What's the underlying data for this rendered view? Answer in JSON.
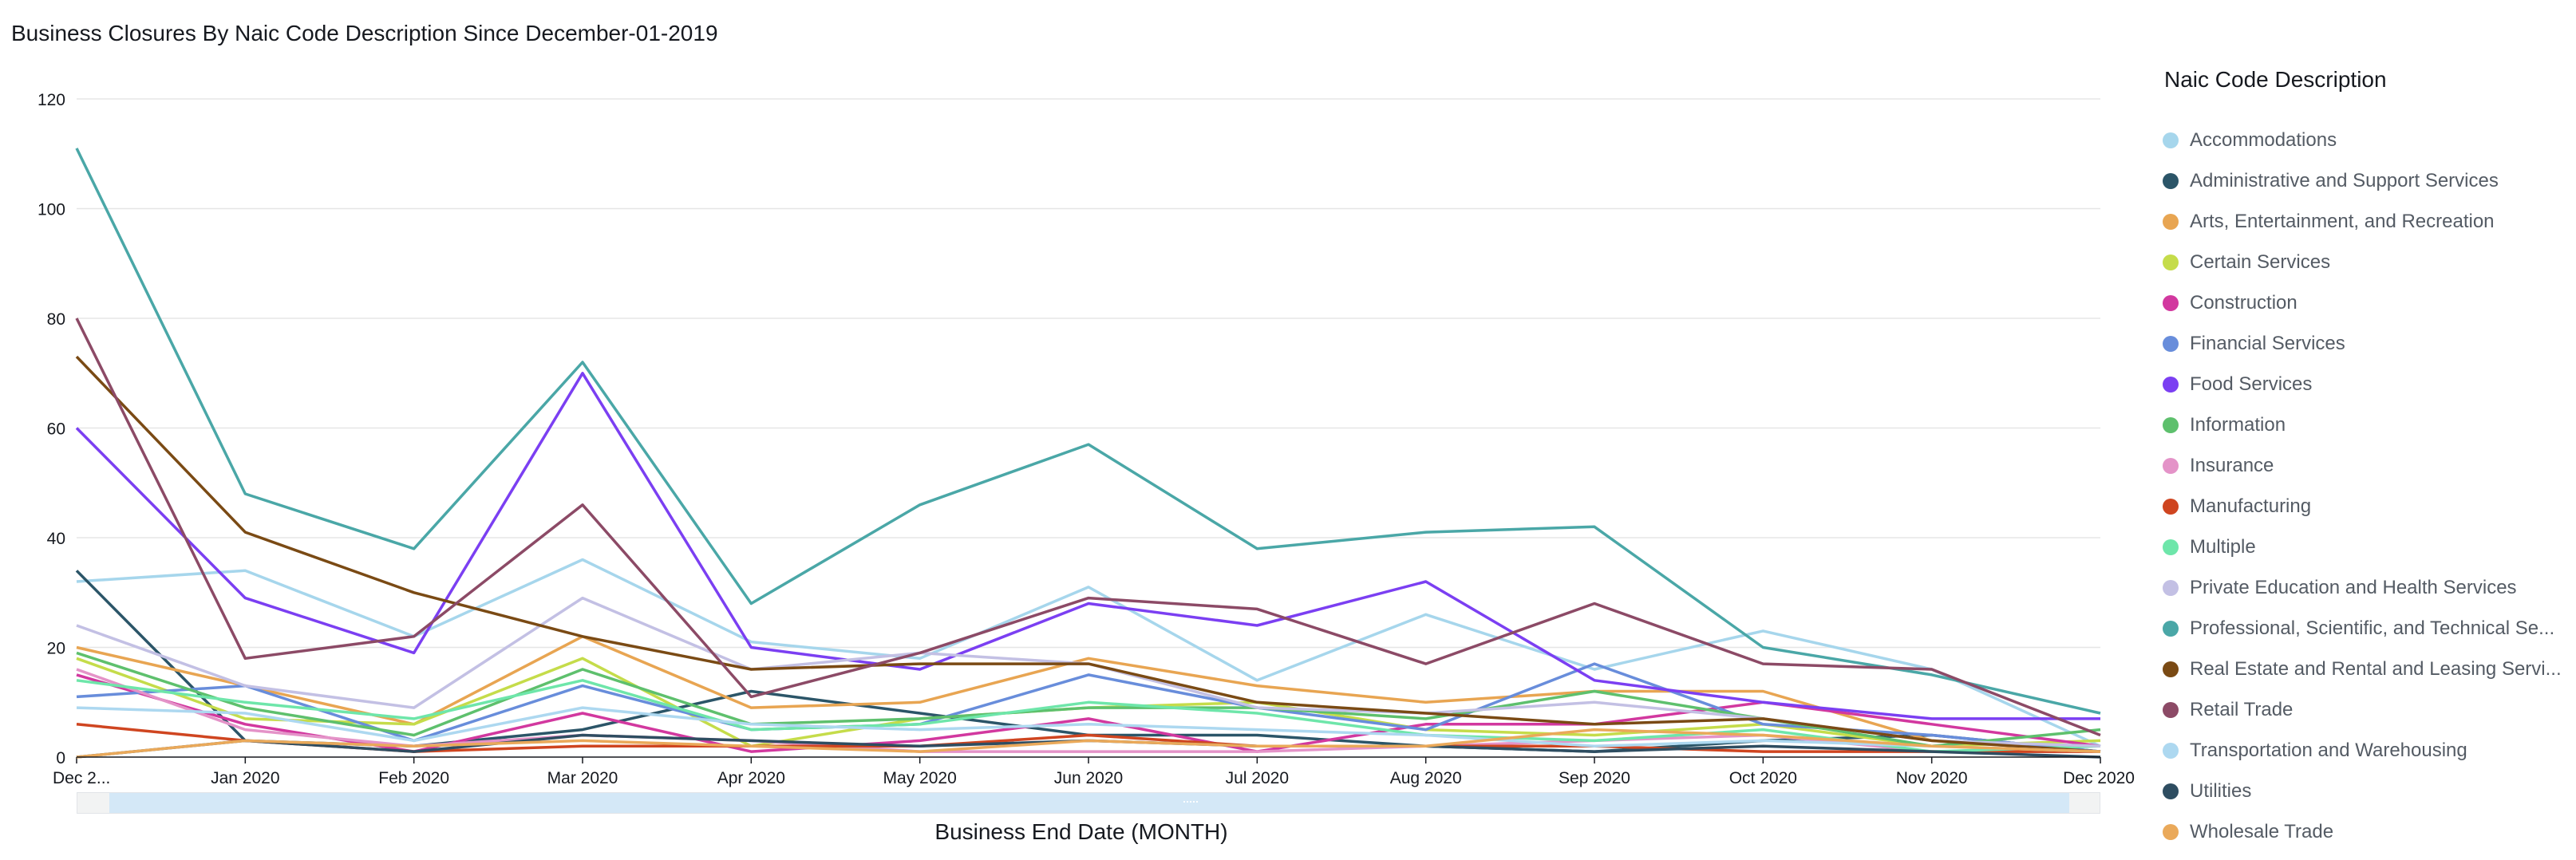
{
  "chart_data": {
    "type": "line",
    "title": "Business Closures By Naic Code Description Since December-01-2019",
    "xlabel": "Business End Date (MONTH)",
    "ylabel": "",
    "ylim": [
      0,
      120
    ],
    "yticks": [
      "0",
      "20",
      "40",
      "60",
      "80",
      "100",
      "120"
    ],
    "grid": true,
    "legend_position": "right",
    "legend_title": "Naic Code Description",
    "categories": [
      "Dec 2...",
      "Jan 2020",
      "Feb 2020",
      "Mar 2020",
      "Apr 2020",
      "May 2020",
      "Jun 2020",
      "Jul 2020",
      "Aug 2020",
      "Sep 2020",
      "Oct 2020",
      "Nov 2020",
      "Dec 2020"
    ],
    "series": [
      {
        "name": "Accommodations",
        "color": "#a6d6ec",
        "values": [
          32,
          34,
          22,
          36,
          21,
          18,
          31,
          14,
          26,
          16,
          23,
          16,
          2
        ]
      },
      {
        "name": "Administrative and Support Services",
        "color": "#2b5568",
        "values": [
          34,
          3,
          2,
          5,
          12,
          8,
          4,
          4,
          2,
          1,
          3,
          4,
          1
        ]
      },
      {
        "name": "Arts, Entertainment, and Recreation",
        "color": "#e8a552",
        "values": [
          20,
          13,
          6,
          22,
          9,
          10,
          18,
          13,
          10,
          12,
          12,
          3,
          1
        ]
      },
      {
        "name": "Certain Services",
        "color": "#c5dc4a",
        "values": [
          18,
          7,
          6,
          18,
          2,
          7,
          9,
          10,
          5,
          4,
          6,
          2,
          3
        ]
      },
      {
        "name": "Construction",
        "color": "#d2389f",
        "values": [
          15,
          6,
          1,
          8,
          1,
          3,
          7,
          1,
          6,
          6,
          10,
          6,
          2
        ]
      },
      {
        "name": "Financial Services",
        "color": "#688ddb",
        "values": [
          11,
          13,
          3,
          13,
          5,
          6,
          15,
          9,
          5,
          17,
          6,
          4,
          1
        ]
      },
      {
        "name": "Food Services",
        "color": "#7b3ff2",
        "values": [
          60,
          29,
          19,
          70,
          20,
          16,
          28,
          24,
          32,
          14,
          10,
          7,
          7
        ]
      },
      {
        "name": "Information",
        "color": "#5ec06d",
        "values": [
          19,
          9,
          4,
          16,
          6,
          7,
          9,
          9,
          7,
          12,
          7,
          2,
          5
        ]
      },
      {
        "name": "Insurance",
        "color": "#e493c8",
        "values": [
          16,
          5,
          2,
          4,
          3,
          1,
          1,
          1,
          2,
          3,
          4,
          1,
          1
        ]
      },
      {
        "name": "Manufacturing",
        "color": "#cf4520",
        "values": [
          6,
          3,
          1,
          2,
          2,
          2,
          4,
          2,
          2,
          2,
          1,
          1,
          1
        ]
      },
      {
        "name": "Multiple",
        "color": "#6ee6aa",
        "values": [
          14,
          10,
          7,
          14,
          5,
          6,
          10,
          8,
          4,
          3,
          5,
          1,
          2
        ]
      },
      {
        "name": "Private Education and Health Services",
        "color": "#c3c0e4",
        "values": [
          24,
          13,
          9,
          29,
          16,
          19,
          17,
          9,
          8,
          10,
          7,
          3,
          2
        ]
      },
      {
        "name": "Professional, Scientific, and Technical Se...",
        "color": "#4aa7a7",
        "values": [
          111,
          48,
          38,
          72,
          28,
          46,
          57,
          38,
          41,
          42,
          20,
          15,
          8
        ]
      },
      {
        "name": "Real Estate and Rental and Leasing Servi...",
        "color": "#7a4a14",
        "values": [
          73,
          41,
          30,
          22,
          16,
          17,
          17,
          10,
          8,
          6,
          7,
          3,
          1
        ]
      },
      {
        "name": "Retail Trade",
        "color": "#8c4a66",
        "values": [
          80,
          18,
          22,
          46,
          11,
          19,
          29,
          27,
          17,
          28,
          17,
          16,
          4
        ]
      },
      {
        "name": "Transportation and Warehousing",
        "color": "#add8f0",
        "values": [
          9,
          8,
          3,
          9,
          6,
          5,
          6,
          5,
          4,
          2,
          3,
          2,
          1
        ]
      },
      {
        "name": "Utilities",
        "color": "#2e4d61",
        "values": [
          0,
          3,
          1,
          4,
          3,
          2,
          3,
          2,
          2,
          1,
          2,
          1,
          0
        ]
      },
      {
        "name": "Wholesale Trade",
        "color": "#eaa95a",
        "values": [
          0,
          3,
          2,
          3,
          2,
          1,
          3,
          2,
          2,
          5,
          4,
          2,
          1
        ]
      }
    ]
  }
}
